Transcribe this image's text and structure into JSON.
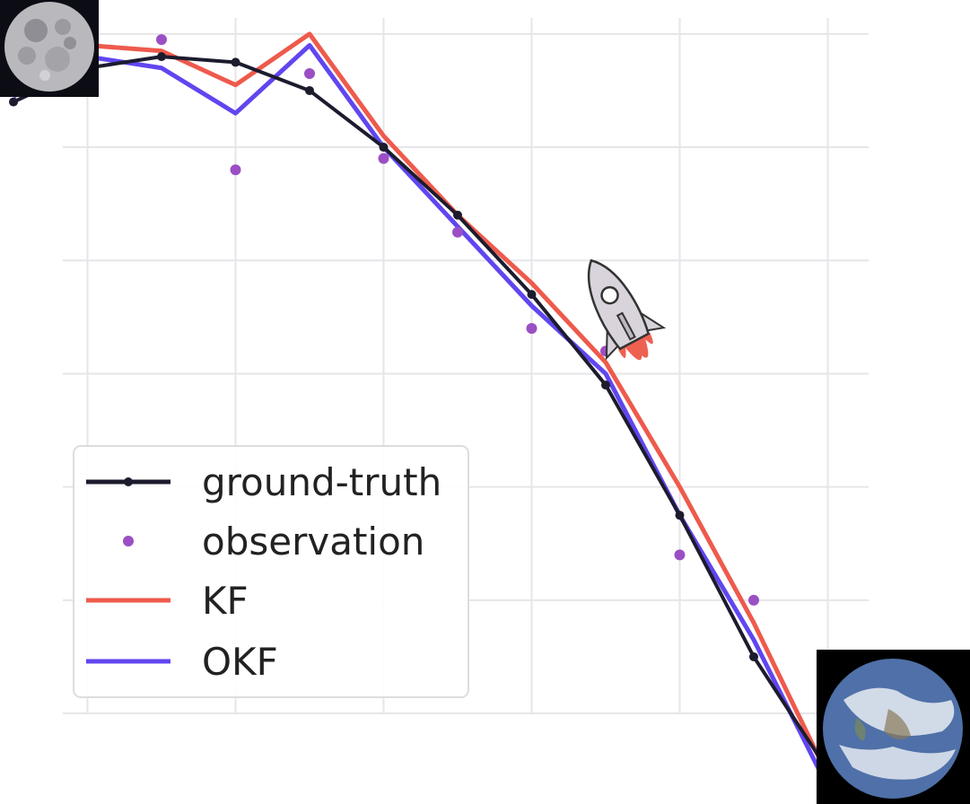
{
  "chart_data": {
    "type": "line",
    "title": "",
    "xlabel": "",
    "ylabel": "",
    "grid": true,
    "legend_placement": "lower-left",
    "xlim": [
      0,
      12
    ],
    "ylim": [
      -12.6,
      1.6
    ],
    "x_gridlines": [
      1,
      3,
      5,
      7,
      9,
      11
    ],
    "y_gridlines": [
      -11,
      -9,
      -7,
      -5,
      -3,
      -1,
      1
    ],
    "series": [
      {
        "name": "ground-truth",
        "style": "line-marker",
        "color": "#1c1c2e",
        "x": [
          0,
          1,
          2,
          3,
          4,
          5,
          6,
          7,
          8,
          9,
          10,
          11,
          12
        ],
        "y": [
          -0.2,
          0.4,
          0.6,
          0.5,
          0.0,
          -1.0,
          -2.2,
          -3.6,
          -5.2,
          -7.5,
          -10.0,
          -12.0,
          -13.2
        ]
      },
      {
        "name": "observation",
        "style": "dot",
        "color": "#9b4fc4",
        "x": [
          0,
          1,
          2,
          3,
          4,
          5,
          6,
          7,
          8,
          9,
          10,
          11,
          12
        ],
        "y": [
          0.0,
          0.1,
          0.9,
          -1.4,
          0.3,
          -1.2,
          -2.5,
          -4.2,
          -4.6,
          -8.2,
          -9.0,
          -11.6,
          -12.4
        ]
      },
      {
        "name": "KF",
        "style": "line",
        "color": "#ee5a4c",
        "x": [
          0,
          1,
          2,
          3,
          4,
          5,
          6,
          7,
          8,
          9,
          10,
          11,
          12
        ],
        "y": [
          0.0,
          0.8,
          0.7,
          0.1,
          1.0,
          -0.8,
          -2.2,
          -3.4,
          -4.8,
          -7.0,
          -9.4,
          -12.1,
          -13.1
        ]
      },
      {
        "name": "OKF",
        "style": "line",
        "color": "#6046f0",
        "x": [
          0,
          1,
          2,
          3,
          4,
          5,
          6,
          7,
          8,
          9,
          10,
          11,
          12
        ],
        "y": [
          -0.1,
          0.6,
          0.4,
          -0.4,
          0.8,
          -1.0,
          -2.4,
          -3.8,
          -5.0,
          -7.5,
          -9.7,
          -12.3,
          -13.2
        ]
      }
    ],
    "legend": [
      "ground-truth",
      "observation",
      "KF",
      "OKF"
    ],
    "decorations": {
      "top_left_image": "moon-image",
      "bottom_right_image": "earth-image",
      "rocket_icon": "rocket-icon"
    }
  }
}
